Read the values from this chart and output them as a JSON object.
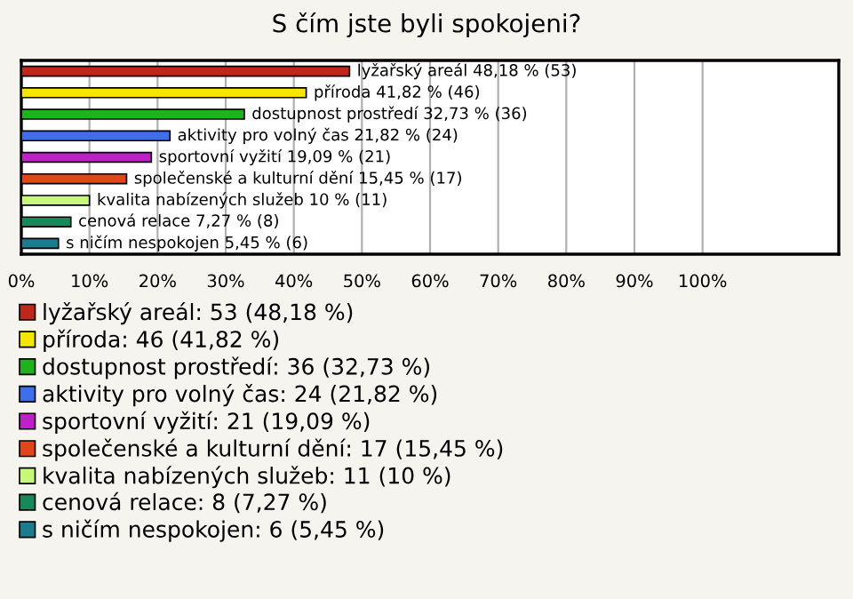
{
  "chart_data": {
    "type": "bar",
    "orientation": "horizontal",
    "title": "S čím jste byli spokojeni?",
    "categories": [
      null,
      null,
      null,
      null,
      null,
      null,
      null,
      null,
      null
    ],
    "series": [
      {
        "name": "lyžařský areál: 53 (48,18 %)",
        "color": "#c0271b",
        "values": [
          48.18,
          null,
          null,
          null,
          null,
          null,
          null,
          null,
          null
        ],
        "value_labels": [
          "lyžařský areál 48,18 % (53)",
          null,
          null,
          null,
          null,
          null,
          null,
          null,
          null
        ]
      },
      {
        "name": "příroda: 46 (41,82 %)",
        "color": "#f5e600",
        "values": [
          null,
          41.82,
          null,
          null,
          null,
          null,
          null,
          null,
          null
        ],
        "value_labels": [
          null,
          "příroda 41,82 % (46)",
          null,
          null,
          null,
          null,
          null,
          null,
          null
        ]
      },
      {
        "name": "dostupnost prostředí: 36 (32,73 %)",
        "color": "#1fb21f",
        "values": [
          null,
          null,
          32.73,
          null,
          null,
          null,
          null,
          null,
          null
        ],
        "value_labels": [
          null,
          null,
          "dostupnost prostředí 32,73 % (36)",
          null,
          null,
          null,
          null,
          null,
          null
        ]
      },
      {
        "name": "aktivity pro volný čas: 24 (21,82 %)",
        "color": "#3f6fe8",
        "values": [
          null,
          null,
          null,
          21.82,
          null,
          null,
          null,
          null,
          null
        ],
        "value_labels": [
          null,
          null,
          null,
          "aktivity pro volný čas 21,82 % (24)",
          null,
          null,
          null,
          null,
          null
        ]
      },
      {
        "name": "sportovní vyžití: 21 (19,09 %)",
        "color": "#c020c8",
        "values": [
          null,
          null,
          null,
          null,
          19.09,
          null,
          null,
          null,
          null
        ],
        "value_labels": [
          null,
          null,
          null,
          null,
          "sportovní vyžití 19,09 % (21)",
          null,
          null,
          null,
          null
        ]
      },
      {
        "name": "společenské a kulturní dění: 17 (15,45 %)",
        "color": "#e0461a",
        "values": [
          null,
          null,
          null,
          null,
          null,
          15.45,
          null,
          null,
          null
        ],
        "value_labels": [
          null,
          null,
          null,
          null,
          null,
          "společenské a kulturní dění 15,45 % (17)",
          null,
          null,
          null
        ]
      },
      {
        "name": "kvalita nabízených služeb: 11 (10 %)",
        "color": "#c8f878",
        "values": [
          null,
          null,
          null,
          null,
          null,
          null,
          10,
          null,
          null
        ],
        "value_labels": [
          null,
          null,
          null,
          null,
          null,
          null,
          "kvalita nabízených služeb 10 % (11)",
          null,
          null
        ]
      },
      {
        "name": "cenová relace: 8 (7,27 %)",
        "color": "#17885a",
        "values": [
          null,
          null,
          null,
          null,
          null,
          null,
          null,
          7.27,
          null
        ],
        "value_labels": [
          null,
          null,
          null,
          null,
          null,
          null,
          null,
          "cenová relace 7,27 % (8)",
          null
        ]
      },
      {
        "name": "s ničím nespokojen: 6 (5,45 %)",
        "color": "#1a7c8c",
        "values": [
          null,
          null,
          null,
          null,
          null,
          null,
          null,
          null,
          5.45
        ],
        "value_labels": [
          null,
          null,
          null,
          null,
          null,
          null,
          null,
          null,
          "s ničím nespokojen 5,45 % (6)"
        ]
      }
    ],
    "xlim": [
      0,
      120
    ],
    "xticks": [
      {
        "value": 0,
        "label": "0%"
      },
      {
        "value": 10,
        "label": "10%"
      },
      {
        "value": 20,
        "label": "20%"
      },
      {
        "value": 30,
        "label": "30%"
      },
      {
        "value": 40,
        "label": "40%"
      },
      {
        "value": 50,
        "label": "50%"
      },
      {
        "value": 60,
        "label": "60%"
      },
      {
        "value": 70,
        "label": "70%"
      },
      {
        "value": 80,
        "label": "80%"
      },
      {
        "value": 90,
        "label": "90%"
      },
      {
        "value": 100,
        "label": "100%"
      }
    ],
    "grid": "x",
    "legend": "bottom"
  }
}
